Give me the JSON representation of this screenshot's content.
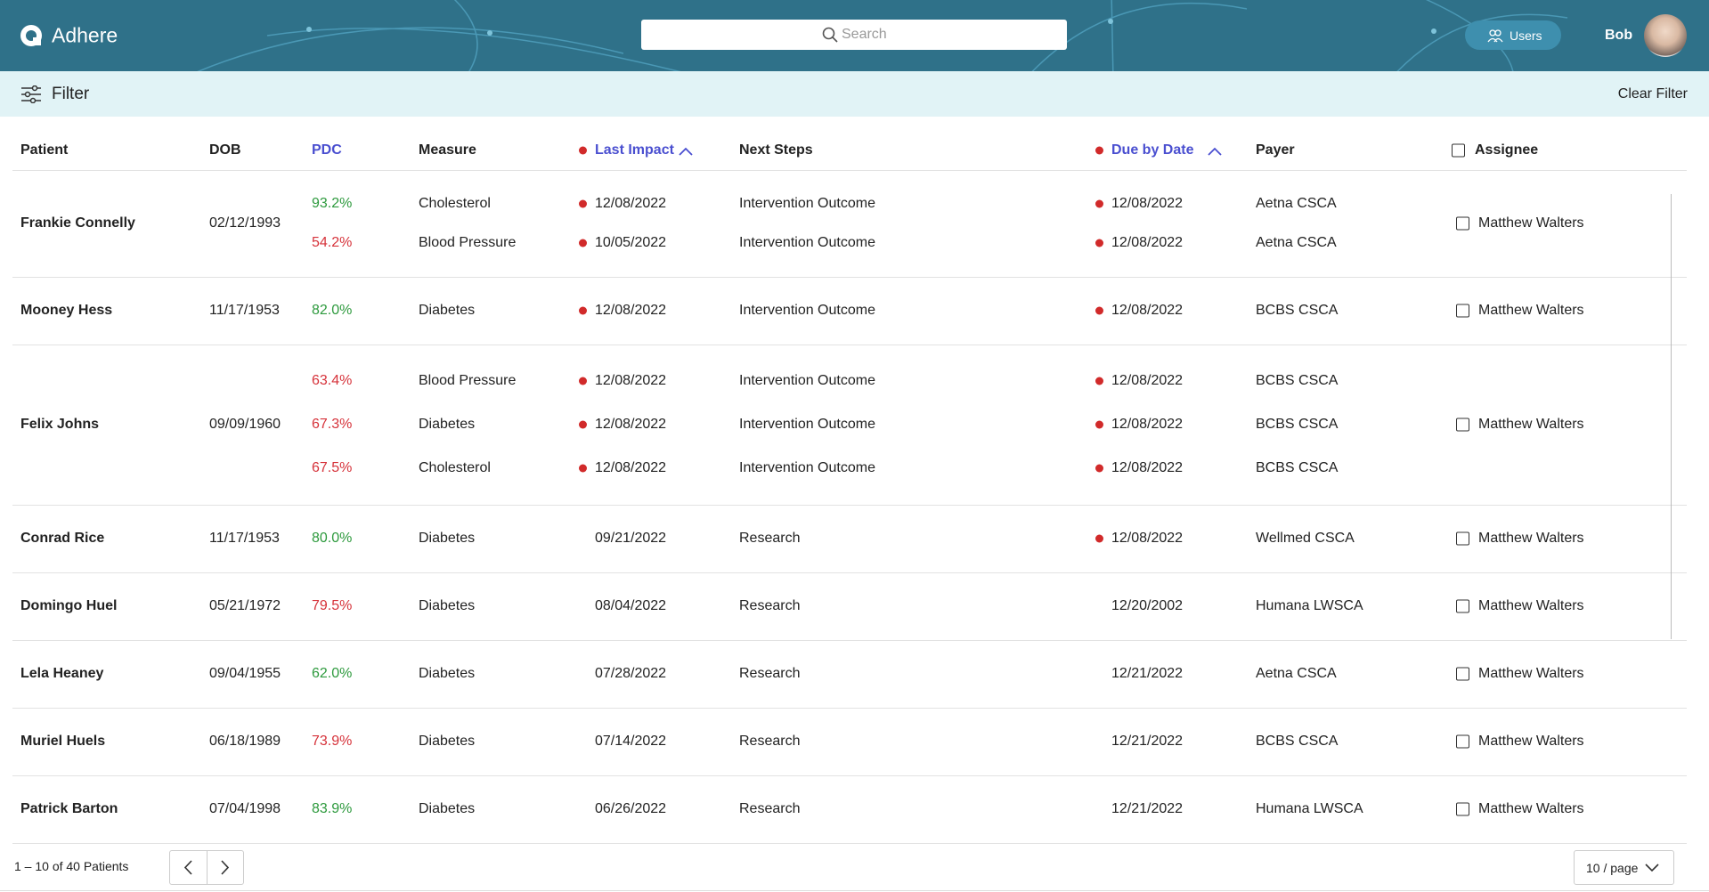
{
  "header": {
    "brand": "Adhere",
    "search_placeholder": "Search",
    "users_button": "Users",
    "user_name": "Bob"
  },
  "filter": {
    "label": "Filter",
    "clear": "Clear Filter"
  },
  "table": {
    "columns": [
      "Patient",
      "DOB",
      "PDC",
      "Measure",
      "Last Impact",
      "Next Steps",
      "Due by Date",
      "Payer",
      "Assignee"
    ],
    "rows": [
      {
        "patient": "Frankie Connelly",
        "dob": "02/12/1993",
        "assignee": "Matthew Walters",
        "measures": [
          {
            "pdc": "93.2%",
            "pdc_color": "#2e9a3e",
            "measure": "Cholesterol",
            "last_impact": "12/08/2022",
            "last_flag": true,
            "next_steps": "Intervention Outcome",
            "due": "12/08/2022",
            "due_flag": true,
            "payer": "Aetna CSCA"
          },
          {
            "pdc": "54.2%",
            "pdc_color": "#d6333b",
            "measure": "Blood Pressure",
            "last_impact": "10/05/2022",
            "last_flag": true,
            "next_steps": "Intervention Outcome",
            "due": "12/08/2022",
            "due_flag": true,
            "payer": "Aetna CSCA"
          }
        ]
      },
      {
        "patient": "Mooney Hess",
        "dob": "11/17/1953",
        "assignee": "Matthew Walters",
        "measures": [
          {
            "pdc": "82.0%",
            "pdc_color": "#2e9a3e",
            "measure": "Diabetes",
            "last_impact": "12/08/2022",
            "last_flag": true,
            "next_steps": "Intervention Outcome",
            "due": "12/08/2022",
            "due_flag": true,
            "payer": "BCBS CSCA"
          }
        ]
      },
      {
        "patient": "Felix Johns",
        "dob": "09/09/1960",
        "assignee": "Matthew Walters",
        "measures": [
          {
            "pdc": "63.4%",
            "pdc_color": "#d6333b",
            "measure": "Blood Pressure",
            "last_impact": "12/08/2022",
            "last_flag": true,
            "next_steps": "Intervention Outcome",
            "due": "12/08/2022",
            "due_flag": true,
            "payer": "BCBS CSCA"
          },
          {
            "pdc": "67.3%",
            "pdc_color": "#d6333b",
            "measure": "Diabetes",
            "last_impact": "12/08/2022",
            "last_flag": true,
            "next_steps": "Intervention Outcome",
            "due": "12/08/2022",
            "due_flag": true,
            "payer": "BCBS CSCA"
          },
          {
            "pdc": "67.5%",
            "pdc_color": "#d6333b",
            "measure": "Cholesterol",
            "last_impact": "12/08/2022",
            "last_flag": true,
            "next_steps": "Intervention Outcome",
            "due": "12/08/2022",
            "due_flag": true,
            "payer": "BCBS CSCA"
          }
        ]
      },
      {
        "patient": "Conrad Rice",
        "dob": "11/17/1953",
        "assignee": "Matthew Walters",
        "measures": [
          {
            "pdc": "80.0%",
            "pdc_color": "#2e9a3e",
            "measure": "Diabetes",
            "last_impact": "09/21/2022",
            "last_flag": false,
            "next_steps": "Research",
            "due": "12/08/2022",
            "due_flag": true,
            "payer": "Wellmed CSCA"
          }
        ]
      },
      {
        "patient": "Domingo Huel",
        "dob": "05/21/1972",
        "assignee": "Matthew Walters",
        "measures": [
          {
            "pdc": "79.5%",
            "pdc_color": "#d6333b",
            "measure": "Diabetes",
            "last_impact": "08/04/2022",
            "last_flag": false,
            "next_steps": "Research",
            "due": "12/20/2002",
            "due_flag": false,
            "payer": "Humana LWSCA"
          }
        ]
      },
      {
        "patient": "Lela Heaney",
        "dob": "09/04/1955",
        "assignee": "Matthew Walters",
        "measures": [
          {
            "pdc": "62.0%",
            "pdc_color": "#2e9a3e",
            "measure": "Diabetes",
            "last_impact": "07/28/2022",
            "last_flag": false,
            "next_steps": "Research",
            "due": "12/21/2022",
            "due_flag": false,
            "payer": "Aetna CSCA"
          }
        ]
      },
      {
        "patient": "Muriel Huels",
        "dob": "06/18/1989",
        "assignee": "Matthew Walters",
        "measures": [
          {
            "pdc": "73.9%",
            "pdc_color": "#d6333b",
            "measure": "Diabetes",
            "last_impact": "07/14/2022",
            "last_flag": false,
            "next_steps": "Research",
            "due": "12/21/2022",
            "due_flag": false,
            "payer": "BCBS CSCA"
          }
        ]
      },
      {
        "patient": "Patrick Barton",
        "dob": "07/04/1998",
        "assignee": "Matthew Walters",
        "measures": [
          {
            "pdc": "83.9%",
            "pdc_color": "#2e9a3e",
            "measure": "Diabetes",
            "last_impact": "06/26/2022",
            "last_flag": false,
            "next_steps": "Research",
            "due": "12/21/2022",
            "due_flag": false,
            "payer": "Humana LWSCA"
          }
        ]
      }
    ]
  },
  "footer": {
    "range": "1 – 10 of 40 Patients",
    "page_size": "10 / page"
  }
}
